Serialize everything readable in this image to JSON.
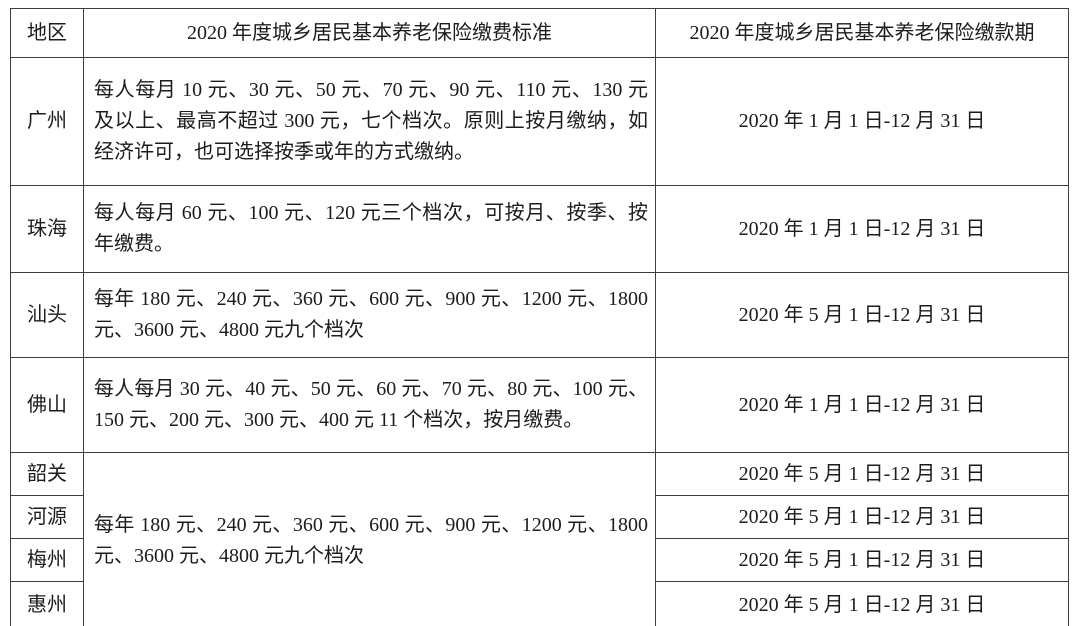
{
  "table": {
    "headers": [
      "地区",
      "2020 年度城乡居民基本养老保险缴费标准",
      "2020 年度城乡居民基本养老保险缴款期"
    ],
    "rows": [
      {
        "region": "广州",
        "standard": "每人每月 10 元、30 元、50 元、70 元、90 元、110 元、130 元及以上、最高不超过 300 元，七个档次。原则上按月缴纳，如经济许可，也可选择按季或年的方式缴纳。",
        "period": "2020 年 1 月 1 日-12 月 31 日"
      },
      {
        "region": "珠海",
        "standard": "每人每月 60 元、100 元、120 元三个档次，可按月、按季、按年缴费。",
        "period": "2020 年 1 月 1 日-12 月 31 日"
      },
      {
        "region": "汕头",
        "standard": "每年 180 元、240 元、360 元、600 元、900 元、1200 元、1800 元、3600 元、4800 元九个档次",
        "period": "2020 年 5 月 1 日-12 月 31 日"
      },
      {
        "region": "佛山",
        "standard": "每人每月 30 元、40 元、50 元、60 元、70 元、80 元、100 元、150 元、200 元、300 元、400 元 11 个档次，按月缴费。",
        "period": "2020 年 1 月 1 日-12 月 31 日"
      },
      {
        "region": "韶关",
        "period": "2020 年 5 月 1 日-12 月 31 日"
      },
      {
        "region": "河源",
        "period": "2020 年 5 月 1 日-12 月 31 日"
      },
      {
        "region": "梅州",
        "period": "2020 年 5 月 1 日-12 月 31 日"
      },
      {
        "region": "惠州",
        "period": "2020 年 5 月 1 日-12 月 31 日"
      }
    ],
    "merged_standard": "每年 180 元、240 元、360 元、600 元、900 元、1200 元、1800 元、3600 元、4800 元九个档次"
  },
  "colors": {
    "text": "#1c1c1c",
    "border": "#3d3d3d",
    "background": "#ffffff"
  }
}
